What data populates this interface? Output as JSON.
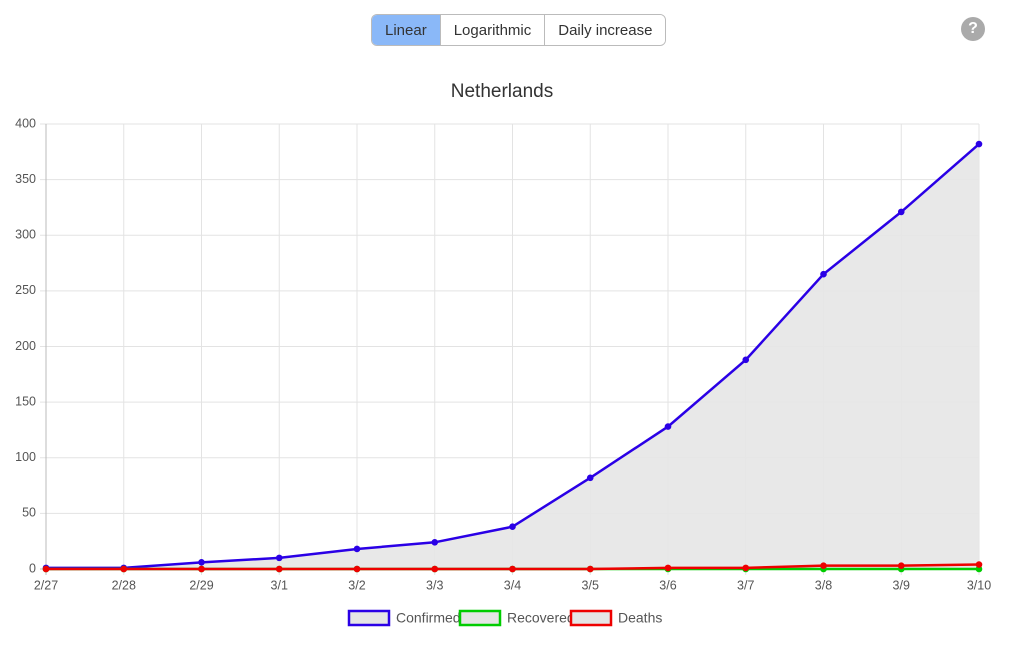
{
  "controls": {
    "buttons": [
      "Linear",
      "Logarithmic",
      "Daily increase"
    ],
    "selected_index": 0,
    "help_label": "?"
  },
  "chart_data": {
    "type": "line",
    "title": "Netherlands",
    "categories": [
      "2/27",
      "2/28",
      "2/29",
      "3/1",
      "3/2",
      "3/3",
      "3/4",
      "3/5",
      "3/6",
      "3/7",
      "3/8",
      "3/9",
      "3/10"
    ],
    "series": [
      {
        "name": "Confirmed",
        "color": "#2a00e6",
        "values": [
          1,
          1,
          6,
          10,
          18,
          24,
          38,
          82,
          128,
          188,
          265,
          321,
          382
        ]
      },
      {
        "name": "Recovered",
        "color": "#00cc00",
        "values": [
          0,
          0,
          0,
          0,
          0,
          0,
          0,
          0,
          0,
          0,
          0,
          0,
          0
        ]
      },
      {
        "name": "Deaths",
        "color": "#ee0000",
        "values": [
          0,
          0,
          0,
          0,
          0,
          0,
          0,
          0,
          1,
          1,
          3,
          3,
          4
        ]
      }
    ],
    "fill_color": "#e5e5e5",
    "ylim": [
      0,
      400
    ],
    "yticks": [
      0,
      50,
      100,
      150,
      200,
      250,
      300,
      350,
      400
    ],
    "grid": true,
    "legend": "bottom"
  }
}
